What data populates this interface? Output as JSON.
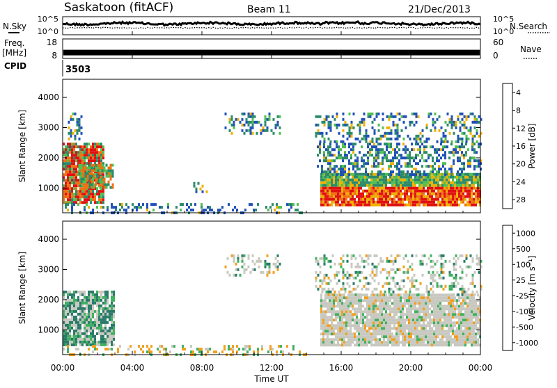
{
  "header": {
    "station": "Saskatoon (fitACF)",
    "beam": "Beam 11",
    "date": "21/Dec/2013"
  },
  "side_labels": {
    "nsky": "N.Sky",
    "freq_line1": "Freq.",
    "freq_line2": "[MHz]",
    "cpid": "CPID",
    "nsearch": "N.Search",
    "nave": "Nave"
  },
  "cpid_value": "3503",
  "x_axis": {
    "label": "Time UT",
    "ticks": [
      "00:00",
      "04:00",
      "08:00",
      "12:00",
      "16:00",
      "20:00",
      "00:00"
    ]
  },
  "chart_data": [
    {
      "type": "line",
      "name": "noise-panel",
      "left_axis": {
        "ticks": [
          "10^5",
          "10^0"
        ]
      },
      "right_axis": {
        "ticks": [
          "10^5",
          "10^0"
        ]
      },
      "series": [
        {
          "name": "N.Sky",
          "style": "solid"
        },
        {
          "name": "N.Search",
          "style": "dotted"
        }
      ]
    },
    {
      "type": "line",
      "name": "freq-nave-panel",
      "left_axis": {
        "ticks": [
          "18",
          "8"
        ],
        "range": [
          8,
          18
        ]
      },
      "right_axis": {
        "ticks": [
          "60",
          "0"
        ],
        "range": [
          0,
          60
        ]
      },
      "series": [
        {
          "name": "Freq.",
          "approx_value": 11
        },
        {
          "name": "Nave",
          "style": "dotted"
        }
      ]
    },
    {
      "type": "heatmap",
      "name": "power-panel",
      "xlabel": "Time UT",
      "xlim": [
        0,
        24
      ],
      "ylabel": "Slant Range [km]",
      "ylim": [
        180,
        4600
      ],
      "yticks": [
        1000,
        2000,
        3000,
        4000
      ],
      "colorbar": {
        "label": "Power [dB]",
        "ticks": [
          "4",
          "8",
          "12",
          "16",
          "20",
          "24",
          "28"
        ],
        "colors": [
          "#1010f0",
          "#2050b8",
          "#2a8a6a",
          "#50c050",
          "#f0b000",
          "#f07010",
          "#e01010"
        ]
      },
      "blobs": [
        [
          0.0,
          2.3,
          500,
          2500,
          0.9
        ],
        [
          0.9,
          2.9,
          1000,
          1800,
          0.7
        ],
        [
          0.3,
          1.1,
          2600,
          3500,
          0.35
        ],
        [
          14.8,
          24,
          450,
          1500,
          0.95
        ],
        [
          14.6,
          24,
          1400,
          2500,
          0.45
        ],
        [
          14.5,
          24,
          2500,
          3500,
          0.3
        ],
        [
          9.3,
          12.5,
          2800,
          3500,
          0.35
        ],
        [
          0,
          14,
          180,
          500,
          0.25
        ],
        [
          7.5,
          8.3,
          900,
          1200,
          0.3
        ]
      ]
    },
    {
      "type": "heatmap",
      "name": "velocity-panel",
      "xlabel": "Time UT",
      "xlim": [
        0,
        24
      ],
      "ylabel": "Slant Range [km]",
      "ylim": [
        180,
        4600
      ],
      "yticks": [
        1000,
        2000,
        3000,
        4000
      ],
      "colorbar": {
        "label": "Velocity [m s⁻¹]",
        "ticks": [
          "1000",
          "500",
          "100",
          "25",
          "-25",
          "-100",
          "-500",
          "-1000"
        ],
        "colors": [
          "#1040c0",
          "#2a7a6a",
          "#40b060",
          "#c8c8c0",
          "#d0d0c8",
          "#f0a020",
          "#f06010",
          "#e01010"
        ]
      },
      "blobs": [
        [
          0.0,
          3.0,
          500,
          2300,
          0.85
        ],
        [
          14.8,
          24,
          500,
          2200,
          0.9
        ],
        [
          14.5,
          24,
          2200,
          3500,
          0.3
        ],
        [
          9.3,
          12.5,
          2800,
          3500,
          0.3
        ],
        [
          0,
          14,
          180,
          500,
          0.3
        ]
      ]
    }
  ]
}
